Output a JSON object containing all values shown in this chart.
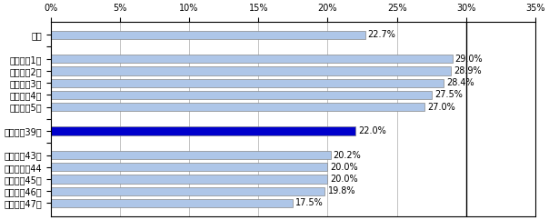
{
  "categories": [
    "全国",
    "",
    "島根県　1位",
    "秋田県　2位",
    "高知県　3位",
    "山口県　4位",
    "山形県　5位",
    "",
    "茨城県　39位",
    "",
    "滋賀県　43位",
    "神奈川県　44",
    "埼玉県　45位",
    "愛知県　46位",
    "沖縄県　47位"
  ],
  "values": [
    22.7,
    0,
    29.0,
    28.9,
    28.4,
    27.5,
    27.0,
    0,
    22.0,
    0,
    20.2,
    20.0,
    20.0,
    19.8,
    17.5
  ],
  "bar_colors": [
    "#aec6e8",
    "#ffffff",
    "#aec6e8",
    "#aec6e8",
    "#aec6e8",
    "#aec6e8",
    "#aec6e8",
    "#ffffff",
    "#0000cc",
    "#ffffff",
    "#aec6e8",
    "#aec6e8",
    "#aec6e8",
    "#aec6e8",
    "#aec6e8"
  ],
  "xlim": [
    0,
    35
  ],
  "xticks": [
    0,
    5,
    10,
    15,
    20,
    25,
    30,
    35
  ],
  "xlabel_format": "%",
  "value_labels": [
    "22.7%",
    "",
    "29.0%",
    "28.9%",
    "28.4%",
    "27.5%",
    "27.0%",
    "",
    "22.0%",
    "",
    "20.2%",
    "20.0%",
    "20.0%",
    "19.8%",
    "17.5%"
  ],
  "bar_height": 0.7,
  "figsize": [
    6.04,
    2.42
  ],
  "dpi": 100,
  "bg_color": "#ffffff",
  "grid_color": "#aaaaaa",
  "border_color": "#000000",
  "font_size": 7,
  "vline_x": 30
}
